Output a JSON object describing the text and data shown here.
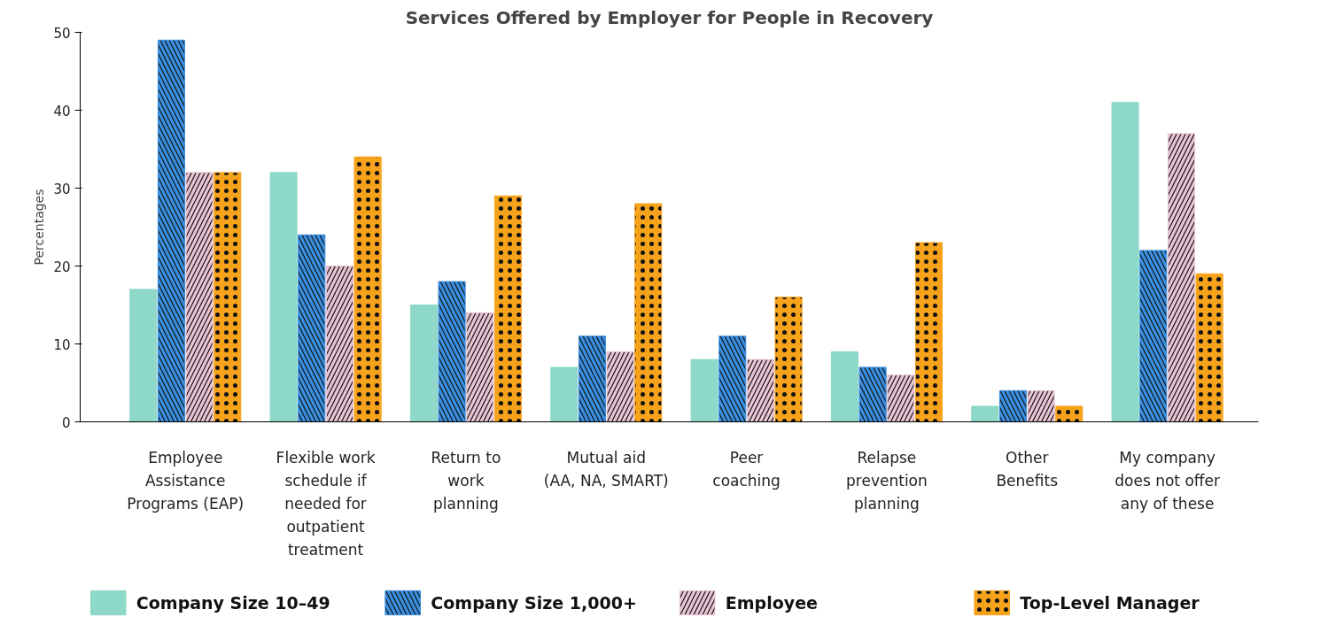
{
  "chart_data": {
    "type": "bar",
    "title": "Services Offered by Employer for People in Recovery",
    "ylabel": "Percentages",
    "categories": [
      "Employee\nAssistance\nPrograms (EAP)",
      "Flexible work\nschedule if\nneeded for\noutpatient\ntreatment",
      "Return to\nwork\nplanning",
      "Mutual aid\n(AA, NA, SMART)",
      "Peer\ncoaching",
      "Relapse\nprevention\nplanning",
      "Other\nBenefits",
      "My company\ndoes not offer\nany of these"
    ],
    "series": [
      {
        "name": "Company Size 10–49",
        "color": "#8dd8c8",
        "values": [
          17,
          32,
          15,
          7,
          8,
          9,
          2,
          41
        ]
      },
      {
        "name": "Company Size 1,000+",
        "color": "#3a8fe0",
        "values": [
          49,
          24,
          18,
          11,
          11,
          7,
          4,
          22
        ]
      },
      {
        "name": "Employee",
        "color": "#e8c4d4",
        "values": [
          32,
          20,
          14,
          9,
          8,
          6,
          4,
          37
        ]
      },
      {
        "name": "Top-Level Manager",
        "color": "#f7a21b",
        "values": [
          32,
          34,
          29,
          28,
          16,
          23,
          2,
          19
        ]
      }
    ],
    "ylim": [
      0,
      50
    ],
    "yticks": [
      0,
      10,
      20,
      30,
      40,
      50
    ],
    "grid": false,
    "legend": "bottom"
  }
}
